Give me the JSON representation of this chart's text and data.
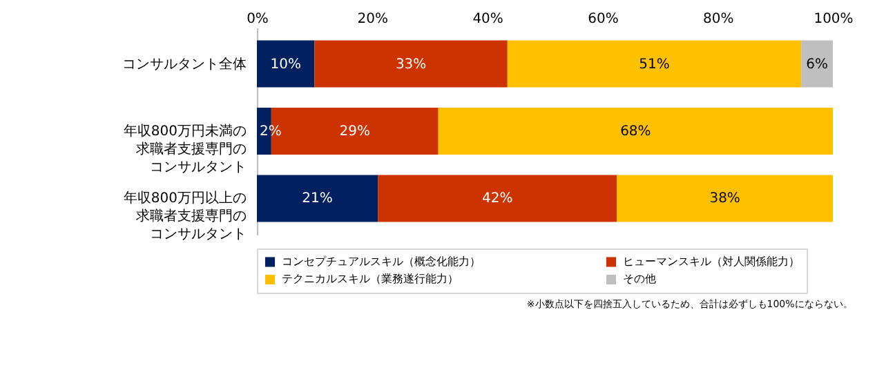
{
  "chart_data": {
    "type": "bar",
    "orientation": "horizontal",
    "stacked": true,
    "categories": [
      "コンサルタント全体",
      "年収800万円未満の求職者支援専門のコンサルタント",
      "年収800万円以上の求職者支援専門のコンサルタント"
    ],
    "series": [
      {
        "name": "コンセプチュアルスキル（概念化能力）",
        "color": "#002060",
        "values": [
          10,
          2.5,
          21
        ],
        "value_labels": [
          "10%",
          "2%",
          "21%"
        ]
      },
      {
        "name": "ヒューマンスキル（対人関係能力）",
        "color": "#cc3300",
        "values": [
          33.5,
          29,
          41.5
        ],
        "value_labels": [
          "33%",
          "29%",
          "42%"
        ]
      },
      {
        "name": "テクニカルスキル（業務遂行能力）",
        "color": "#ffc000",
        "values": [
          51,
          68.5,
          37.5
        ],
        "value_labels": [
          "51%",
          "68%",
          "38%"
        ]
      },
      {
        "name": "その他",
        "color": "#bfbfbf",
        "values": [
          5.5,
          null,
          null
        ],
        "value_labels": [
          "6%",
          null,
          null
        ]
      }
    ],
    "xlim": [
      0,
      100
    ],
    "xticks": [
      {
        "value": 0,
        "label": "0%"
      },
      {
        "value": 20,
        "label": "20%"
      },
      {
        "value": 40,
        "label": "40%"
      },
      {
        "value": 60,
        "label": "60%"
      },
      {
        "value": 80,
        "label": "80%"
      },
      {
        "value": 100,
        "label": "100%"
      }
    ],
    "grid": false,
    "legend": "bottom",
    "annotations": [
      "※小数点以下を四捨五入しているため、合計は必ずしも100%にならない。"
    ]
  }
}
